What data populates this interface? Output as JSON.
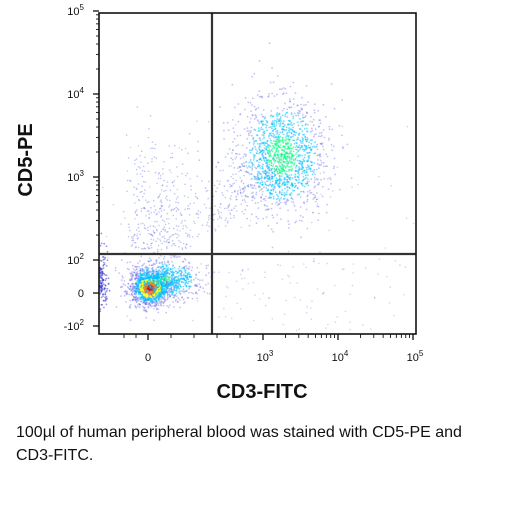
{
  "chart_data": {
    "type": "scatter",
    "subtype": "flow-cytometry-density-dot-plot",
    "title": "",
    "xlabel": "CD3-FITC",
    "ylabel": "CD5-PE",
    "x_scale": "biexponential",
    "y_scale": "biexponential",
    "xlim": [
      -100,
      100000
    ],
    "ylim": [
      -100,
      100000
    ],
    "x_ticks": [
      {
        "base": "0",
        "exp": ""
      },
      {
        "base": "10",
        "exp": "3"
      },
      {
        "base": "10",
        "exp": "4"
      },
      {
        "base": "10",
        "exp": "5"
      }
    ],
    "y_ticks": [
      {
        "base": "10",
        "exp": "5"
      },
      {
        "base": "10",
        "exp": "4"
      },
      {
        "base": "10",
        "exp": "3"
      },
      {
        "base": "10",
        "exp": "2"
      },
      {
        "base": "0",
        "exp": ""
      },
      {
        "base": "-10",
        "exp": "2"
      }
    ],
    "quadrant_gates": {
      "x": 400,
      "y": 130
    },
    "grid": false,
    "legend": "none",
    "color_scale": [
      "#0000ff",
      "#00c0ff",
      "#00ff80",
      "#ffff00",
      "#ff8000",
      "#ff0000"
    ],
    "populations": [
      {
        "x_center": 1800,
        "y_center": 1800,
        "spread": "medium",
        "peak_density": "high"
      },
      {
        "x_center": 20,
        "y_center": 15,
        "spread": "small",
        "peak_density": "very-high"
      },
      {
        "x_center": 150,
        "y_center": 40,
        "spread": "small",
        "peak_density": "medium"
      }
    ]
  },
  "caption": "100µl of human peripheral blood was stained with CD5-PE and CD3-FITC."
}
